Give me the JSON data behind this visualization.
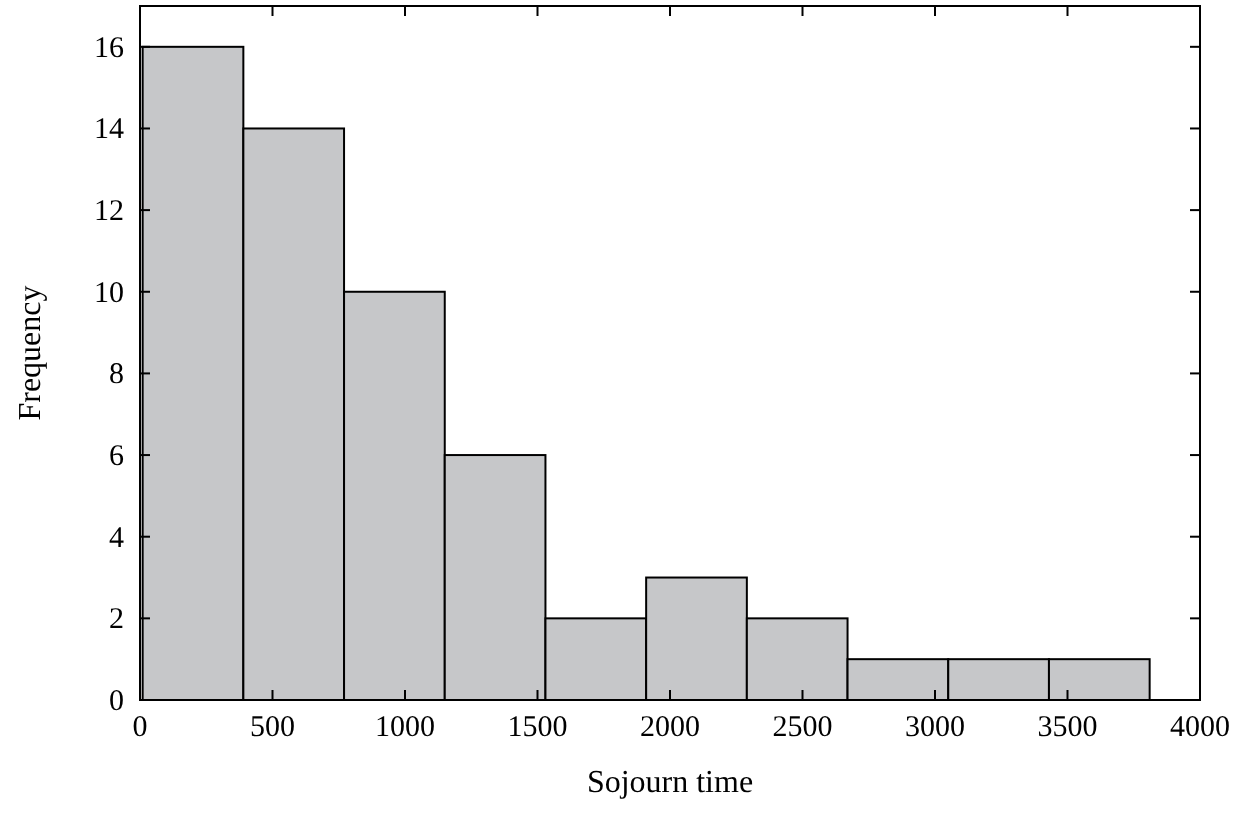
{
  "chart_data": {
    "type": "histogram",
    "xlabel": "Sojourn time",
    "ylabel": "Frequency",
    "bins": [
      10,
      390,
      770,
      1150,
      1530,
      1910,
      2290,
      2670,
      3050,
      3430,
      3810
    ],
    "values": [
      16,
      14,
      10,
      6,
      2,
      3,
      2,
      1,
      1,
      1
    ],
    "color": "#c6c7c9",
    "xlim": [
      0,
      4000
    ],
    "xticks": [
      0,
      500,
      1000,
      1500,
      2000,
      2500,
      3000,
      3500,
      4000
    ],
    "ylim": [
      0,
      17
    ],
    "yticks": [
      0,
      2,
      4,
      6,
      8,
      10,
      12,
      14,
      16
    ]
  }
}
